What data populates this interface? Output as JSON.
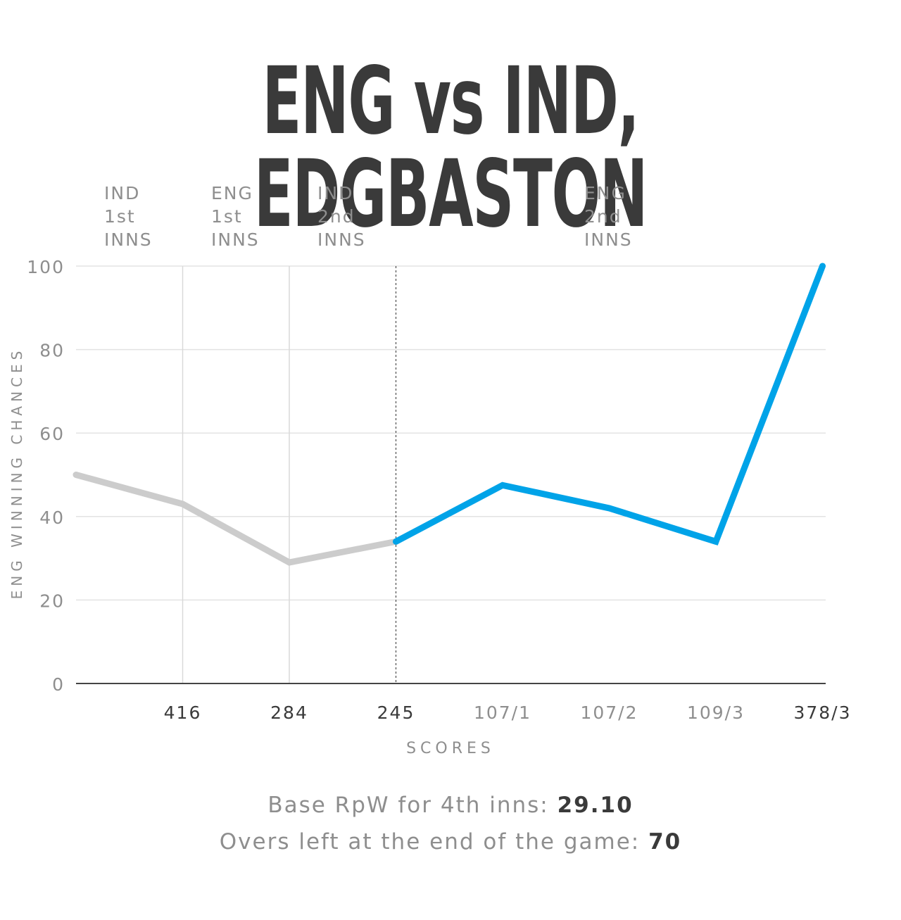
{
  "title": "ENG vs IND, EDGBASTON",
  "chart_data": {
    "type": "line",
    "title": "ENG vs IND, EDGBASTON",
    "xlabel": "SCORES",
    "ylabel": "ENG WINNING CHANCES",
    "ylim": [
      0,
      100
    ],
    "yticks": [
      "0",
      "20",
      "40",
      "60",
      "80",
      "100"
    ],
    "grid": true,
    "categories": [
      "",
      "416",
      "284",
      "245",
      "107/1",
      "107/2",
      "109/3",
      "378/3"
    ],
    "innings_labels": [
      {
        "text": "IND\n1st\nINNS"
      },
      {
        "text": "ENG\n1st\nINNS"
      },
      {
        "text": "IND\n2nd\nINNS"
      },
      {
        "text": "ENG\n2nd\nINNS"
      }
    ],
    "series": [
      {
        "values": [
          50,
          43,
          29,
          34,
          null,
          null,
          null,
          null
        ],
        "color": "#cccccc"
      },
      {
        "values": [
          null,
          null,
          null,
          34,
          47.5,
          42,
          34,
          100
        ],
        "color": "#00a3e8"
      }
    ],
    "tick_colors": [
      "#3a3a3a",
      "#3a3a3a",
      "#3a3a3a",
      "#3a3a3a",
      "#8e8e8e",
      "#8e8e8e",
      "#8e8e8e",
      "#3a3a3a"
    ]
  },
  "footer": {
    "line1_text": "Base RpW for 4th inns: ",
    "line1_value": "29.10",
    "line2_text": "Overs left at the end of the game: ",
    "line2_value": "70"
  }
}
